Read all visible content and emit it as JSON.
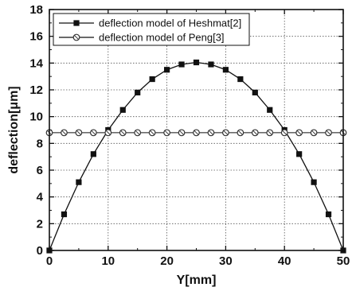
{
  "chart_data": {
    "type": "line",
    "title": "",
    "xlabel": "Y[mm]",
    "ylabel": "deflection[μm]",
    "xlim": [
      0,
      50
    ],
    "ylim": [
      0,
      18
    ],
    "x_ticks": [
      "0",
      "10",
      "20",
      "30",
      "40",
      "50"
    ],
    "y_ticks": [
      "0",
      "2",
      "4",
      "6",
      "8",
      "10",
      "12",
      "14",
      "16",
      "18"
    ],
    "grid": true,
    "legend_position": "top-left",
    "series": [
      {
        "name": "deflection model of Heshmat[2]",
        "marker": "filled-square",
        "color": "#111111",
        "x": [
          0,
          2.5,
          5,
          7.5,
          10,
          12.5,
          15,
          17.5,
          20,
          22.5,
          25,
          27.5,
          30,
          32.5,
          35,
          37.5,
          40,
          42.5,
          45,
          47.5,
          50
        ],
        "y": [
          0,
          2.7,
          5.1,
          7.2,
          9.0,
          10.5,
          11.8,
          12.8,
          13.5,
          13.9,
          14.05,
          13.9,
          13.5,
          12.8,
          11.8,
          10.5,
          9.0,
          7.2,
          5.1,
          2.7,
          0
        ]
      },
      {
        "name": "deflection model of Peng[3]",
        "marker": "crossed-circle",
        "color": "#111111",
        "x": [
          0,
          2.5,
          5,
          7.5,
          10,
          12.5,
          15,
          17.5,
          20,
          22.5,
          25,
          27.5,
          30,
          32.5,
          35,
          37.5,
          40,
          42.5,
          45,
          47.5,
          50
        ],
        "y": [
          8.8,
          8.8,
          8.8,
          8.8,
          8.8,
          8.8,
          8.8,
          8.8,
          8.8,
          8.8,
          8.8,
          8.8,
          8.8,
          8.8,
          8.8,
          8.8,
          8.8,
          8.8,
          8.8,
          8.8,
          8.8
        ]
      }
    ]
  }
}
